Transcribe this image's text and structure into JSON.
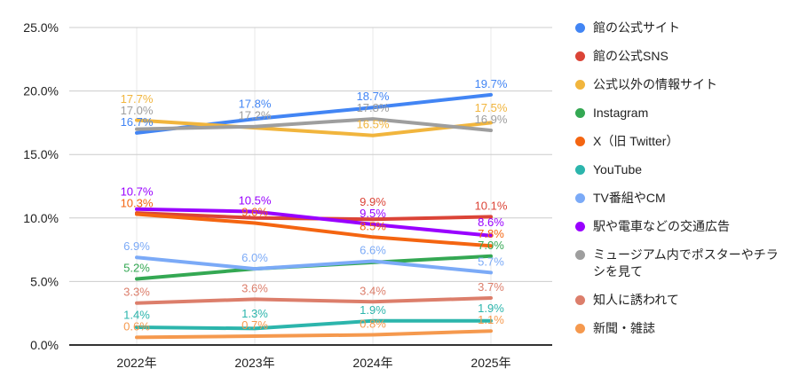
{
  "chart_data": {
    "type": "line",
    "title": "",
    "categories": [
      "2022年",
      "2023年",
      "2024年",
      "2025年"
    ],
    "y_axis": {
      "ticks": [
        "0.0%",
        "5.0%",
        "10.0%",
        "15.0%",
        "20.0%",
        "25.0%"
      ],
      "min": 0,
      "max": 25,
      "step": 5
    },
    "grid": true,
    "legend_position": "right",
    "series": [
      {
        "name": "館の公式サイト",
        "color": "#4285F4",
        "values": [
          16.7,
          17.8,
          18.7,
          19.7
        ],
        "labels": [
          "16.7%",
          "17.8%",
          "18.7%",
          "19.7%"
        ]
      },
      {
        "name": "館の公式SNS",
        "color": "#DB4437",
        "values": [
          10.4,
          10.0,
          9.9,
          10.1
        ],
        "labels": [
          null,
          null,
          "9.9%",
          "10.1%"
        ]
      },
      {
        "name": "公式以外の情報サイト",
        "color": "#F1B53D",
        "values": [
          17.7,
          17.1,
          16.5,
          17.5
        ],
        "labels": [
          "17.7%",
          null,
          "16.5%",
          "17.5%"
        ]
      },
      {
        "name": "Instagram",
        "color": "#34A853",
        "values": [
          5.2,
          6.0,
          6.5,
          7.0
        ],
        "labels": [
          "5.2%",
          null,
          null,
          "7.0%"
        ]
      },
      {
        "name": "X（旧 Twitter）",
        "color": "#F46511",
        "values": [
          10.3,
          9.6,
          8.5,
          7.8
        ],
        "labels": [
          "10.3%",
          "9.6%",
          "8.5%",
          "7.8%"
        ]
      },
      {
        "name": "YouTube",
        "color": "#2CB5AC",
        "values": [
          1.4,
          1.3,
          1.9,
          1.9
        ],
        "labels": [
          "1.4%",
          "1.3%",
          "1.9%",
          "1.9%"
        ]
      },
      {
        "name": "TV番組やCM",
        "color": "#7BAAF7",
        "values": [
          6.9,
          6.0,
          6.6,
          5.7
        ],
        "labels": [
          "6.9%",
          "6.0%",
          "6.6%",
          "5.7%"
        ]
      },
      {
        "name": "駅や電車などの交通広告",
        "color": "#9900FF",
        "values": [
          10.7,
          10.5,
          9.5,
          8.6
        ],
        "labels": [
          "10.7%",
          "10.5%",
          "9.5%",
          "8.6%"
        ]
      },
      {
        "name": "ミュージアム内でポスターやチラシを見て",
        "color": "#9E9E9E",
        "values": [
          17.0,
          17.2,
          17.8,
          16.9
        ],
        "labels": [
          "17.0%",
          "17.2%",
          "17.8%",
          "16.9%"
        ]
      },
      {
        "name": "知人に誘われて",
        "color": "#DC7E6B",
        "values": [
          3.3,
          3.6,
          3.4,
          3.7
        ],
        "labels": [
          "3.3%",
          "3.6%",
          "3.4%",
          "3.7%"
        ]
      },
      {
        "name": "新聞・雑誌",
        "color": "#F5994E",
        "values": [
          0.6,
          0.7,
          0.8,
          1.1
        ],
        "labels": [
          "0.6%",
          "0.7%",
          "0.8%",
          "1.1%"
        ]
      }
    ],
    "colors": {
      "grid_line": "#cccccc",
      "vertical_grid_line": "#e8e8e8",
      "baseline": "#333333",
      "axis_text": "#212121",
      "label_font_px": 13
    }
  }
}
